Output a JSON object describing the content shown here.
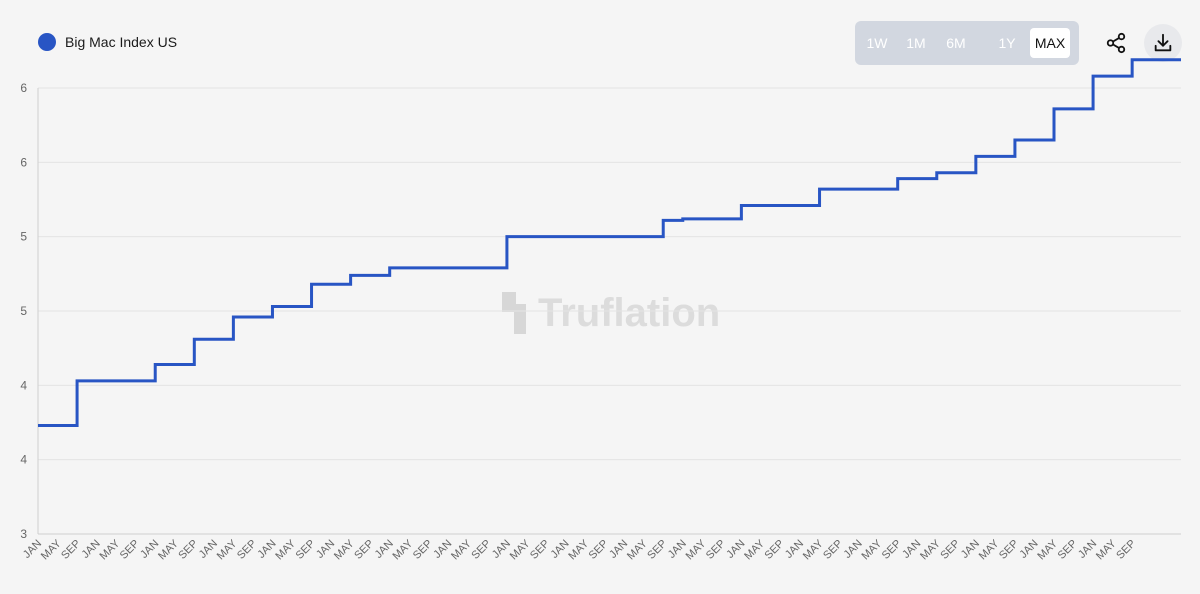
{
  "legend": {
    "label": "Big Mac Index US",
    "color": "#2855c4"
  },
  "range_buttons": [
    {
      "label": "1W",
      "active": false
    },
    {
      "label": "1M",
      "active": false
    },
    {
      "label": "6M",
      "active": false
    },
    {
      "label": "1Y",
      "active": false
    },
    {
      "label": "MAX",
      "active": true
    }
  ],
  "actions": {
    "share_icon": "share-icon",
    "download_icon": "download-icon"
  },
  "watermark": "Truflation",
  "chart_data": {
    "type": "line",
    "step": true,
    "title": "",
    "xlabel": "",
    "ylabel": "",
    "ylim": [
      3.0,
      6.0
    ],
    "yticks": [
      3.0,
      3.5,
      4.0,
      4.5,
      5.0,
      5.5,
      6.0
    ],
    "ytick_labels": [
      "3",
      "4",
      "4",
      "5",
      "5",
      "6",
      "6"
    ],
    "xlim": [
      0,
      58.5
    ],
    "xticks": [
      0,
      1,
      2,
      3,
      4,
      5,
      6,
      7,
      8,
      9,
      10,
      11,
      12,
      13,
      14,
      15,
      16,
      17,
      18,
      19,
      20,
      21,
      22,
      23,
      24,
      25,
      26,
      27,
      28,
      29,
      30,
      31,
      32,
      33,
      34,
      35,
      36,
      37,
      38,
      39,
      40,
      41,
      42,
      43,
      44,
      45,
      46,
      47,
      48,
      49,
      50,
      51,
      52,
      53,
      54,
      55,
      56
    ],
    "xtick_labels": [
      "JAN",
      "MAY",
      "SEP",
      "JAN",
      "MAY",
      "SEP",
      "JAN",
      "MAY",
      "SEP",
      "JAN",
      "MAY",
      "SEP",
      "JAN",
      "MAY",
      "SEP",
      "JAN",
      "MAY",
      "SEP",
      "JAN",
      "MAY",
      "SEP",
      "JAN",
      "MAY",
      "SEP",
      "JAN",
      "MAY",
      "SEP",
      "JAN",
      "MAY",
      "SEP",
      "JAN",
      "MAY",
      "SEP",
      "JAN",
      "MAY",
      "SEP",
      "JAN",
      "MAY",
      "SEP",
      "JAN",
      "MAY",
      "SEP",
      "JAN",
      "MAY",
      "SEP",
      "JAN",
      "MAY",
      "SEP",
      "JAN",
      "MAY",
      "SEP",
      "JAN",
      "MAY",
      "SEP",
      "JAN",
      "MAY",
      "SEP"
    ],
    "grid": true,
    "legend_position": "top-left",
    "series": [
      {
        "name": "Big Mac Index US",
        "color": "#2855c4",
        "x": [
          0,
          2,
          6,
          8,
          10,
          12,
          14,
          16,
          18,
          24,
          32,
          33,
          36,
          40,
          44,
          46,
          48,
          50,
          52,
          54,
          56,
          58.5
        ],
        "y": [
          3.73,
          4.03,
          4.14,
          4.31,
          4.46,
          4.53,
          4.68,
          4.74,
          4.79,
          5.0,
          5.11,
          5.12,
          5.21,
          5.32,
          5.39,
          5.43,
          5.54,
          5.65,
          5.86,
          6.08,
          6.19,
          6.19
        ]
      }
    ]
  }
}
